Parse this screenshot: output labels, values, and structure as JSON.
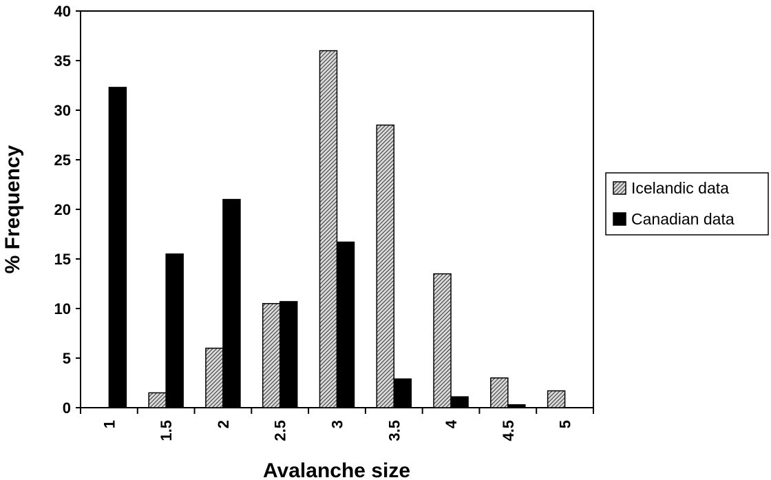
{
  "chart_data": {
    "type": "bar",
    "title": "",
    "xlabel": "Avalanche size",
    "ylabel": "% Frequency",
    "categories": [
      "1",
      "1.5",
      "2",
      "2.5",
      "3",
      "3.5",
      "4",
      "4.5",
      "5"
    ],
    "ylim": [
      0,
      40
    ],
    "yticks": [
      "0",
      "5",
      "10",
      "15",
      "20",
      "25",
      "30",
      "35",
      "40"
    ],
    "grid": false,
    "legend_position": "right",
    "series": [
      {
        "name": "Icelandic data",
        "pattern": "hatched",
        "color": "#8a8a8a",
        "values": [
          0,
          1.5,
          6,
          10.5,
          36,
          28.5,
          13.5,
          3,
          1.7
        ]
      },
      {
        "name": "Canadian data",
        "pattern": "solid",
        "color": "#000000",
        "values": [
          32.3,
          15.5,
          21,
          10.7,
          16.7,
          2.9,
          1.1,
          0.3,
          0
        ]
      }
    ]
  }
}
